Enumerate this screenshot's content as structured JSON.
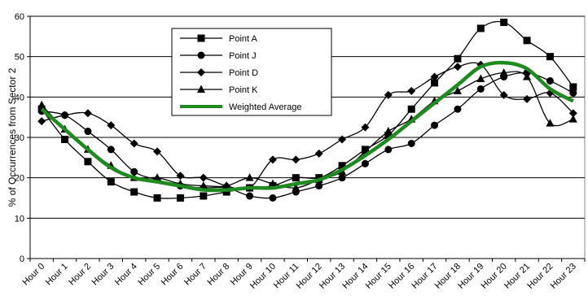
{
  "chart_data": {
    "type": "line",
    "title": "",
    "xlabel": "",
    "ylabel": "% of Occurrences from Sector 2",
    "ylim": [
      0,
      60
    ],
    "yticks": [
      0,
      10,
      20,
      30,
      40,
      50,
      60
    ],
    "grid": "horizontal",
    "legend_position": "top-left",
    "categories": [
      "Hour 0",
      "Hour 1",
      "Hour 2",
      "Hour 3",
      "Hour 4",
      "Hour 5",
      "Hour 6",
      "Hour 7",
      "Hour 8",
      "Hour 9",
      "Hour 10",
      "Hour 11",
      "Hour 12",
      "Hour 13",
      "Hour 14",
      "Hour 15",
      "Hour 16",
      "Hour 17",
      "Hour 18",
      "Hour 19",
      "Hour 20",
      "Hour 21",
      "Hour 22",
      "Hour 23"
    ],
    "series": [
      {
        "name": "Point A",
        "marker": "square",
        "color": "#000000",
        "values": [
          37,
          29.5,
          24,
          19,
          16.5,
          15,
          15,
          15.5,
          16.5,
          17.5,
          18,
          20,
          20,
          23,
          27,
          30.5,
          37,
          43.5,
          49.5,
          57,
          58.5,
          54,
          50,
          42.5
        ]
      },
      {
        "name": "Point J",
        "marker": "circle",
        "color": "#000000",
        "values": [
          36.5,
          35.5,
          31.5,
          27,
          21.5,
          19.5,
          18,
          17.5,
          17.5,
          15.5,
          15,
          16.5,
          18,
          20,
          23.5,
          27,
          28.5,
          33,
          37,
          42,
          45,
          46,
          44,
          41
        ]
      },
      {
        "name": "Point D",
        "marker": "diamond",
        "color": "#000000",
        "values": [
          34,
          35.5,
          36,
          33,
          28.5,
          26.5,
          20.5,
          20,
          18,
          17.5,
          24.5,
          24.5,
          26,
          29.5,
          32.5,
          40.5,
          41.5,
          45,
          47.5,
          48,
          40.5,
          39.5,
          41,
          36
        ]
      },
      {
        "name": "Point K",
        "marker": "triangle",
        "color": "#000000",
        "values": [
          38,
          32,
          27,
          23,
          20,
          20,
          18.5,
          18,
          18,
          20,
          18.5,
          17.5,
          19.5,
          21.5,
          26.5,
          31.5,
          34.5,
          39,
          41.5,
          44.5,
          46,
          45,
          33.5,
          34.5
        ]
      },
      {
        "name": "Weighted Average",
        "marker": "none",
        "color": "#1f8a1f",
        "values": [
          37,
          32,
          27,
          22.5,
          20,
          19,
          18,
          17,
          17,
          17.5,
          17.5,
          18.5,
          19.5,
          22,
          25.5,
          29.5,
          34,
          38.5,
          43,
          47.5,
          48.5,
          47,
          42,
          39
        ]
      }
    ]
  }
}
